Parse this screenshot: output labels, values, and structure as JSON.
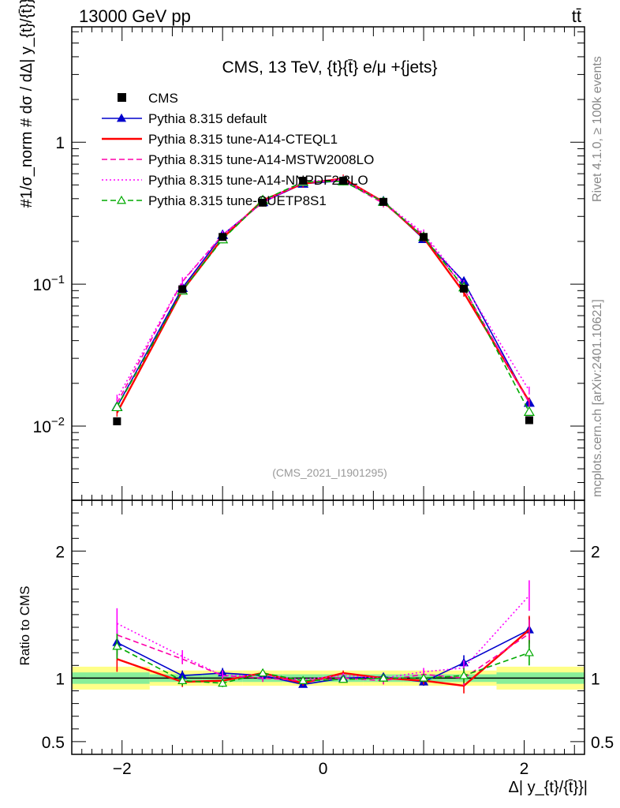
{
  "header": {
    "left_label": "13000 GeV pp",
    "right_label": "tt̄"
  },
  "side_text": {
    "rivet": "Rivet 4.1.0, ≥ 100k events",
    "mcplots": "mcplots.cern.ch [arXiv:2401.10621]"
  },
  "chart_data": {
    "type": "line",
    "title": "CMS, 13 TeV, {t}{t̄} e/μ +{jets}",
    "analysis_id": "(CMS_2021_I1901295)",
    "xlabel": "Δ| y_{t}/{t̄}}|",
    "ylabel_main": "#1/σ_norm # dσ / dΔ| y_{t}/{t̄}}|",
    "ylabel_ratio": "Ratio to CMS",
    "xlim": [
      -2.5,
      2.6
    ],
    "ylim_main": [
      0.003,
      6.5
    ],
    "ylim_ratio": [
      0.4,
      2.4
    ],
    "y_scale_main": "log",
    "x_ticks": [
      {
        "v": -2,
        "label": "−2"
      },
      {
        "v": 0,
        "label": "0"
      },
      {
        "v": 2,
        "label": "2"
      }
    ],
    "y_ticks_main": [
      {
        "v": 0.01,
        "base": "10",
        "exp": "−2"
      },
      {
        "v": 0.1,
        "base": "10",
        "exp": "−1"
      },
      {
        "v": 1,
        "base": "1",
        "exp": ""
      }
    ],
    "y_ticks_ratio": [
      {
        "v": 0.5,
        "label": "0.5"
      },
      {
        "v": 1,
        "label": "1"
      },
      {
        "v": 2,
        "label": "2"
      }
    ],
    "x": [
      -2.05,
      -1.4,
      -1.0,
      -0.6,
      -0.2,
      0.2,
      0.6,
      1.0,
      1.4,
      2.05
    ],
    "data": {
      "name": "CMS",
      "values": [
        0.0108,
        0.092,
        0.215,
        0.375,
        0.535,
        0.535,
        0.38,
        0.215,
        0.093,
        0.011
      ],
      "band_inner": [
        0.045,
        0.03,
        0.03,
        0.03,
        0.03,
        0.03,
        0.03,
        0.03,
        0.03,
        0.045
      ],
      "band_outer": [
        0.09,
        0.06,
        0.06,
        0.06,
        0.06,
        0.06,
        0.06,
        0.06,
        0.06,
        0.09
      ]
    },
    "legend_position": "top-left",
    "series": [
      {
        "name": "Pythia 8.315 default",
        "color": "#0000cc",
        "style": "solid",
        "marker": "triangle-filled",
        "values": [
          0.0137,
          0.094,
          0.222,
          0.378,
          0.51,
          0.535,
          0.383,
          0.208,
          0.104,
          0.0146
        ],
        "ratio": [
          1.28,
          1.02,
          1.04,
          1.02,
          0.95,
          1.0,
          1.01,
          0.97,
          1.12,
          1.38
        ],
        "ratio_err": [
          0.1,
          0.04,
          0.04,
          0.03,
          0.02,
          0.02,
          0.03,
          0.03,
          0.06,
          0.1
        ]
      },
      {
        "name": "Pythia 8.315 tune-A14-CTEQL1",
        "color": "#ff0000",
        "style": "solid",
        "marker": "none",
        "values": [
          0.0124,
          0.09,
          0.211,
          0.39,
          0.51,
          0.555,
          0.38,
          0.212,
          0.087,
          0.0149
        ],
        "ratio": [
          1.15,
          0.97,
          0.98,
          1.04,
          0.96,
          1.04,
          1.0,
          0.98,
          0.94,
          1.38
        ],
        "ratio_err": [
          0.1,
          0.04,
          0.03,
          0.03,
          0.02,
          0.02,
          0.03,
          0.03,
          0.06,
          0.11
        ]
      },
      {
        "name": "Pythia 8.315 tune-A14-MSTW2008LO",
        "color": "#ff00aa",
        "style": "dashed",
        "marker": "none",
        "values": [
          0.0145,
          0.104,
          0.222,
          0.375,
          0.52,
          0.535,
          0.37,
          0.222,
          0.093,
          0.0146
        ],
        "ratio": [
          1.34,
          1.15,
          1.02,
          1.0,
          0.98,
          1.0,
          0.98,
          1.03,
          1.0,
          1.35
        ],
        "ratio_err": [
          0.1,
          0.04,
          0.04,
          0.03,
          0.02,
          0.02,
          0.03,
          0.03,
          0.06,
          0.11
        ]
      },
      {
        "name": "Pythia 8.315 tune-A14-NNPDF2.3LO",
        "color": "#ff00ff",
        "style": "dotted",
        "marker": "none",
        "values": [
          0.0156,
          0.105,
          0.222,
          0.38,
          0.53,
          0.545,
          0.38,
          0.228,
          0.1,
          0.0178
        ],
        "ratio": [
          1.43,
          1.17,
          1.02,
          1.02,
          0.99,
          1.02,
          1.0,
          1.05,
          1.08,
          1.65
        ],
        "ratio_err": [
          0.12,
          0.05,
          0.04,
          0.03,
          0.02,
          0.02,
          0.03,
          0.03,
          0.06,
          0.12
        ]
      },
      {
        "name": "Pythia 8.315 tune-CUETP8S1",
        "color": "#00aa00",
        "style": "dashed",
        "marker": "triangle-open",
        "values": [
          0.0136,
          0.09,
          0.207,
          0.39,
          0.525,
          0.53,
          0.38,
          0.215,
          0.095,
          0.0126
        ],
        "ratio": [
          1.25,
          0.98,
          0.96,
          1.04,
          0.98,
          0.99,
          1.0,
          1.0,
          1.02,
          1.2
        ],
        "ratio_err": [
          0.1,
          0.04,
          0.03,
          0.03,
          0.02,
          0.02,
          0.03,
          0.03,
          0.06,
          0.1
        ]
      }
    ]
  }
}
